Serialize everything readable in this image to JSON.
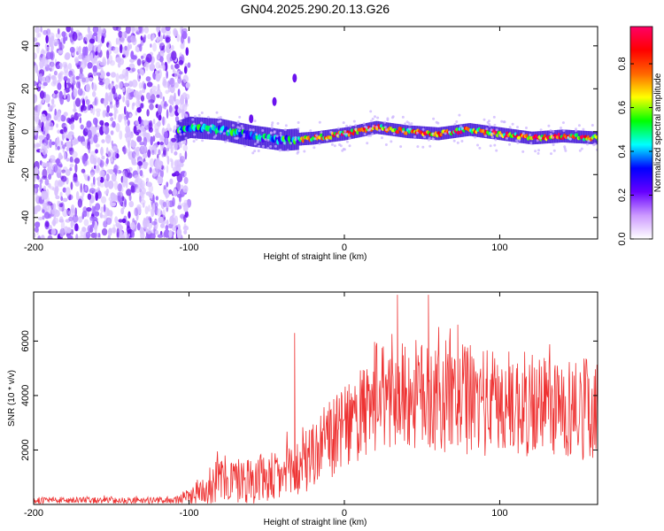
{
  "title": "GN04.2025.290.20.13.G26",
  "chart_data": [
    {
      "type": "heatmap",
      "name": "spectrogram",
      "xlabel": "Height of straight line (km)",
      "ylabel": "Frequency (Hz)",
      "xlim": [
        -200,
        163
      ],
      "ylim": [
        -50,
        49
      ],
      "xticks": [
        "-200",
        "-100",
        "0",
        "100"
      ],
      "xtick_values": [
        -200,
        -100,
        0,
        100
      ],
      "yticks": [
        "40",
        "20",
        "0",
        "-20",
        "-40"
      ],
      "ytick_values": [
        40,
        20,
        0,
        -20,
        -40
      ],
      "colorbar": {
        "label": "Normalized spectral amplitude",
        "range": [
          0,
          0.97
        ],
        "ticks": [
          "0.0",
          "0.2",
          "0.4",
          "0.6",
          "0.8"
        ],
        "tick_values": [
          0.0,
          0.2,
          0.4,
          0.6,
          0.8
        ],
        "colors": [
          "#ffffff",
          "#cc99ff",
          "#6600ff",
          "#0000ff",
          "#00ffff",
          "#00ff00",
          "#ffff00",
          "#ff6600",
          "#ff0000",
          "#ff0066"
        ]
      },
      "features": {
        "noise_region_x": [
          -200,
          -108
        ],
        "ridge_x": [
          -108,
          163
        ],
        "ridge_center_hz": [
          {
            "x": -108,
            "y": 0
          },
          {
            "x": -100,
            "y": 2
          },
          {
            "x": -80,
            "y": 1
          },
          {
            "x": -60,
            "y": -2
          },
          {
            "x": -40,
            "y": -4
          },
          {
            "x": -20,
            "y": -3
          },
          {
            "x": 0,
            "y": -1
          },
          {
            "x": 20,
            "y": 2
          },
          {
            "x": 40,
            "y": 0
          },
          {
            "x": 60,
            "y": -1
          },
          {
            "x": 80,
            "y": 1
          },
          {
            "x": 100,
            "y": -1
          },
          {
            "x": 120,
            "y": -3
          },
          {
            "x": 140,
            "y": -2
          },
          {
            "x": 163,
            "y": -3
          }
        ],
        "side_branch": [
          {
            "x": -60,
            "y": 6
          },
          {
            "x": -45,
            "y": 14
          },
          {
            "x": -32,
            "y": 25
          }
        ]
      }
    },
    {
      "type": "line",
      "name": "snr",
      "xlabel": "Height of straight line (km)",
      "ylabel": "SNR (10 * v/v)",
      "xlim": [
        -200,
        163
      ],
      "ylim": [
        0,
        7800
      ],
      "xticks": [
        "-200",
        "-100",
        "0",
        "100"
      ],
      "xtick_values": [
        -200,
        -100,
        0,
        100
      ],
      "yticks": [
        "6000",
        "4000",
        "2000"
      ],
      "ytick_values": [
        6000,
        4000,
        2000
      ],
      "series": [
        {
          "name": "SNR",
          "color": "#ee3333",
          "envelope": [
            {
              "x": -200,
              "mean": 150,
              "spread": 120
            },
            {
              "x": -110,
              "mean": 150,
              "spread": 120
            },
            {
              "x": -100,
              "mean": 300,
              "spread": 300
            },
            {
              "x": -80,
              "mean": 900,
              "spread": 900
            },
            {
              "x": -60,
              "mean": 900,
              "spread": 900
            },
            {
              "x": -40,
              "mean": 1000,
              "spread": 1000
            },
            {
              "x": -30,
              "mean": 1300,
              "spread": 1200
            },
            {
              "x": -15,
              "mean": 2100,
              "spread": 1400
            },
            {
              "x": 0,
              "mean": 2800,
              "spread": 1500
            },
            {
              "x": 15,
              "mean": 3400,
              "spread": 1800
            },
            {
              "x": 30,
              "mean": 4000,
              "spread": 2000
            },
            {
              "x": 60,
              "mean": 4000,
              "spread": 2100
            },
            {
              "x": 100,
              "mean": 3700,
              "spread": 2000
            },
            {
              "x": 163,
              "mean": 3500,
              "spread": 1900
            }
          ],
          "peaks": [
            {
              "x": -32,
              "y": 6300
            },
            {
              "x": 34,
              "y": 7700
            },
            {
              "x": 54,
              "y": 7700
            },
            {
              "x": 73,
              "y": 6600
            }
          ]
        }
      ]
    }
  ]
}
